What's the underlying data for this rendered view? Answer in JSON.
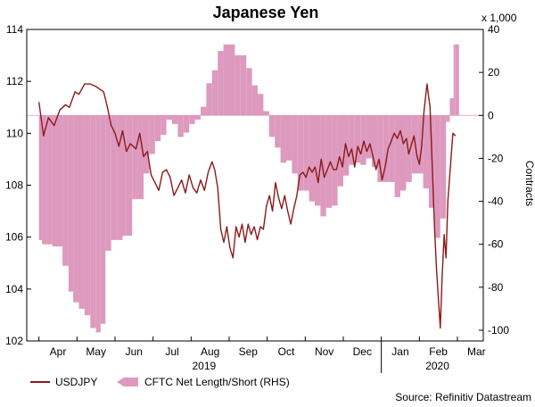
{
  "chart_data": {
    "type": "line+area",
    "title": "Japanese Yen",
    "left_axis": {
      "label": "",
      "range": [
        102,
        114
      ],
      "ticks": [
        102,
        104,
        106,
        108,
        110,
        112,
        114
      ]
    },
    "right_axis": {
      "label": "Contracts",
      "multiplier_label": "x 1,000",
      "range": [
        -105,
        40
      ],
      "ticks": [
        -100,
        -80,
        -60,
        -40,
        -20,
        0,
        20,
        40
      ]
    },
    "x_axis": {
      "month_labels": [
        "Apr",
        "May",
        "Jun",
        "Jul",
        "Aug",
        "Sep",
        "Oct",
        "Nov",
        "Dec",
        "Jan",
        "Feb",
        "Mar"
      ],
      "year_labels": [
        "2019",
        "2020"
      ]
    },
    "series": [
      {
        "name": "USDJPY",
        "axis": "left",
        "color": "#8b1a1a",
        "style": "line",
        "points": [
          [
            0.0,
            111.2
          ],
          [
            0.12,
            109.9
          ],
          [
            0.25,
            110.6
          ],
          [
            0.4,
            110.3
          ],
          [
            0.55,
            110.9
          ],
          [
            0.7,
            111.1
          ],
          [
            0.8,
            111.0
          ],
          [
            0.95,
            111.6
          ],
          [
            1.05,
            111.5
          ],
          [
            1.2,
            111.9
          ],
          [
            1.35,
            111.9
          ],
          [
            1.5,
            111.8
          ],
          [
            1.6,
            111.7
          ],
          [
            1.7,
            111.6
          ],
          [
            1.8,
            111.0
          ],
          [
            1.9,
            110.3
          ],
          [
            2.0,
            110.0
          ],
          [
            2.1,
            109.5
          ],
          [
            2.2,
            110.1
          ],
          [
            2.3,
            109.3
          ],
          [
            2.4,
            109.6
          ],
          [
            2.55,
            109.4
          ],
          [
            2.65,
            110.0
          ],
          [
            2.75,
            109.1
          ],
          [
            2.85,
            109.3
          ],
          [
            2.95,
            108.4
          ],
          [
            3.05,
            108.1
          ],
          [
            3.15,
            107.8
          ],
          [
            3.25,
            108.5
          ],
          [
            3.35,
            108.6
          ],
          [
            3.45,
            108.3
          ],
          [
            3.55,
            107.6
          ],
          [
            3.65,
            107.9
          ],
          [
            3.75,
            108.2
          ],
          [
            3.85,
            107.7
          ],
          [
            3.95,
            108.4
          ],
          [
            4.05,
            107.9
          ],
          [
            4.15,
            107.7
          ],
          [
            4.25,
            108.2
          ],
          [
            4.35,
            107.8
          ],
          [
            4.45,
            108.5
          ],
          [
            4.55,
            108.9
          ],
          [
            4.62,
            108.6
          ],
          [
            4.7,
            107.9
          ],
          [
            4.78,
            106.3
          ],
          [
            4.86,
            105.8
          ],
          [
            4.94,
            106.4
          ],
          [
            5.02,
            105.6
          ],
          [
            5.1,
            105.2
          ],
          [
            5.18,
            106.4
          ],
          [
            5.26,
            106.0
          ],
          [
            5.34,
            106.5
          ],
          [
            5.42,
            105.8
          ],
          [
            5.5,
            106.5
          ],
          [
            5.58,
            106.1
          ],
          [
            5.66,
            106.4
          ],
          [
            5.74,
            105.9
          ],
          [
            5.82,
            106.4
          ],
          [
            5.9,
            106.3
          ],
          [
            5.98,
            107.2
          ],
          [
            6.06,
            107.6
          ],
          [
            6.14,
            107.0
          ],
          [
            6.22,
            108.1
          ],
          [
            6.3,
            107.5
          ],
          [
            6.38,
            107.1
          ],
          [
            6.46,
            107.6
          ],
          [
            6.54,
            107.0
          ],
          [
            6.62,
            106.5
          ],
          [
            6.7,
            107.1
          ],
          [
            6.78,
            107.6
          ],
          [
            6.86,
            108.4
          ],
          [
            6.94,
            108.5
          ],
          [
            7.02,
            108.3
          ],
          [
            7.1,
            108.7
          ],
          [
            7.18,
            108.5
          ],
          [
            7.26,
            108.7
          ],
          [
            7.34,
            108.1
          ],
          [
            7.42,
            109.0
          ],
          [
            7.5,
            108.3
          ],
          [
            7.58,
            108.6
          ],
          [
            7.66,
            108.9
          ],
          [
            7.74,
            108.6
          ],
          [
            7.82,
            108.6
          ],
          [
            7.9,
            109.1
          ],
          [
            7.98,
            108.7
          ],
          [
            8.06,
            109.6
          ],
          [
            8.14,
            109.1
          ],
          [
            8.22,
            109.4
          ],
          [
            8.3,
            108.7
          ],
          [
            8.38,
            109.5
          ],
          [
            8.46,
            109.2
          ],
          [
            8.54,
            109.7
          ],
          [
            8.62,
            109.3
          ],
          [
            8.7,
            109.6
          ],
          [
            8.78,
            109.1
          ],
          [
            8.86,
            108.6
          ],
          [
            8.94,
            109.0
          ],
          [
            9.02,
            108.2
          ],
          [
            9.1,
            108.7
          ],
          [
            9.18,
            109.4
          ],
          [
            9.26,
            109.7
          ],
          [
            9.34,
            110.0
          ],
          [
            9.42,
            109.8
          ],
          [
            9.5,
            110.1
          ],
          [
            9.58,
            109.6
          ],
          [
            9.66,
            109.8
          ],
          [
            9.72,
            109.2
          ],
          [
            9.78,
            109.5
          ],
          [
            9.86,
            109.9
          ],
          [
            9.94,
            109.1
          ],
          [
            10.0,
            108.8
          ],
          [
            10.06,
            109.5
          ],
          [
            10.12,
            110.8
          ],
          [
            10.2,
            111.9
          ],
          [
            10.28,
            111.0
          ],
          [
            10.34,
            108.7
          ],
          [
            10.4,
            106.3
          ],
          [
            10.45,
            104.8
          ],
          [
            10.5,
            103.6
          ],
          [
            10.55,
            102.5
          ],
          [
            10.6,
            104.5
          ],
          [
            10.65,
            106.1
          ],
          [
            10.7,
            105.2
          ],
          [
            10.75,
            107.4
          ],
          [
            10.82,
            108.8
          ],
          [
            10.88,
            110.0
          ],
          [
            10.95,
            109.9
          ]
        ]
      },
      {
        "name": "CFTC Net Length/Short (RHS)",
        "axis": "right",
        "color": "#dd99be",
        "style": "area",
        "points": [
          [
            0.0,
            -58
          ],
          [
            0.08,
            -60
          ],
          [
            0.2,
            -60
          ],
          [
            0.35,
            -61
          ],
          [
            0.5,
            -61
          ],
          [
            0.62,
            -70
          ],
          [
            0.78,
            -82
          ],
          [
            0.9,
            -87
          ],
          [
            1.05,
            -90
          ],
          [
            1.2,
            -93
          ],
          [
            1.35,
            -99
          ],
          [
            1.5,
            -101
          ],
          [
            1.62,
            -97
          ],
          [
            1.75,
            -63
          ],
          [
            1.9,
            -58
          ],
          [
            2.05,
            -58
          ],
          [
            2.2,
            -56
          ],
          [
            2.3,
            -56
          ],
          [
            2.45,
            -39
          ],
          [
            2.6,
            -39
          ],
          [
            2.75,
            -27
          ],
          [
            2.9,
            -18
          ],
          [
            3.05,
            -12
          ],
          [
            3.2,
            -9
          ],
          [
            3.35,
            -2
          ],
          [
            3.5,
            -4
          ],
          [
            3.65,
            -10
          ],
          [
            3.8,
            -8
          ],
          [
            3.95,
            -4
          ],
          [
            4.1,
            -2
          ],
          [
            4.25,
            4
          ],
          [
            4.4,
            15
          ],
          [
            4.55,
            21
          ],
          [
            4.7,
            30
          ],
          [
            4.85,
            33
          ],
          [
            5.0,
            33
          ],
          [
            5.15,
            28
          ],
          [
            5.3,
            28
          ],
          [
            5.45,
            22
          ],
          [
            5.6,
            14
          ],
          [
            5.75,
            10
          ],
          [
            5.9,
            2
          ],
          [
            6.05,
            -10
          ],
          [
            6.2,
            -15
          ],
          [
            6.35,
            -22
          ],
          [
            6.5,
            -21
          ],
          [
            6.65,
            -27
          ],
          [
            6.8,
            -35
          ],
          [
            6.95,
            -35
          ],
          [
            7.1,
            -40
          ],
          [
            7.25,
            -42
          ],
          [
            7.4,
            -47
          ],
          [
            7.55,
            -43
          ],
          [
            7.7,
            -42
          ],
          [
            7.85,
            -33
          ],
          [
            8.0,
            -28
          ],
          [
            8.15,
            -23
          ],
          [
            8.3,
            -22
          ],
          [
            8.45,
            -23
          ],
          [
            8.6,
            -20
          ],
          [
            8.75,
            -24
          ],
          [
            8.9,
            -31
          ],
          [
            9.05,
            -31
          ],
          [
            9.2,
            -31
          ],
          [
            9.35,
            -38
          ],
          [
            9.5,
            -35
          ],
          [
            9.65,
            -31
          ],
          [
            9.8,
            -27
          ],
          [
            9.95,
            -27
          ],
          [
            10.1,
            -34
          ],
          [
            10.25,
            -43
          ],
          [
            10.4,
            -57
          ],
          [
            10.55,
            -48
          ],
          [
            10.7,
            -3
          ],
          [
            10.8,
            8
          ],
          [
            10.9,
            33
          ],
          [
            10.95,
            33
          ]
        ]
      }
    ],
    "legend": {
      "position": "bottom-left",
      "entries": [
        "USDJPY",
        "CFTC Net Length/Short (RHS)"
      ]
    },
    "source": "Source: Refinitiv Datastream"
  }
}
